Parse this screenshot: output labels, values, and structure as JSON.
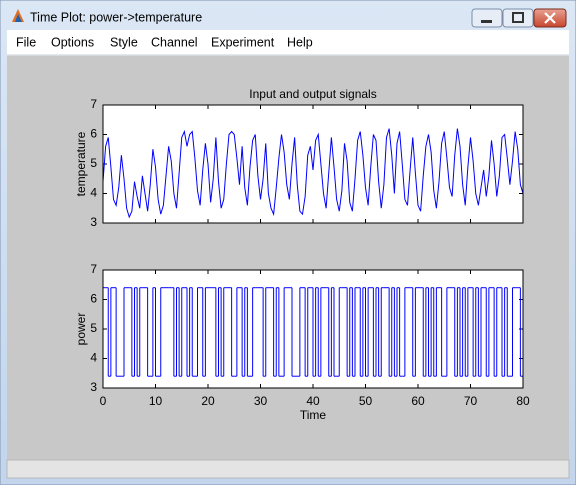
{
  "window": {
    "title": "Time Plot: power->temperature",
    "menu": [
      "File",
      "Options",
      "Style",
      "Channel",
      "Experiment",
      "Help"
    ]
  },
  "chart_data": [
    {
      "type": "line",
      "title": "Input and output signals",
      "ylabel": "temperature",
      "color": "#0000ff",
      "xlim": [
        0,
        80
      ],
      "ylim": [
        3,
        7
      ],
      "yticks": [
        3,
        4,
        5,
        6,
        7
      ],
      "x": [
        0,
        0.5,
        1,
        1.5,
        2,
        2.5,
        3,
        3.5,
        4,
        4.5,
        5,
        5.5,
        6,
        6.5,
        7,
        7.5,
        8,
        8.5,
        9,
        9.5,
        10,
        10.5,
        11,
        11.5,
        12,
        12.5,
        13,
        13.5,
        14,
        14.5,
        15,
        15.5,
        16,
        16.5,
        17,
        17.5,
        18,
        18.5,
        19,
        19.5,
        20,
        20.5,
        21,
        21.5,
        22,
        22.5,
        23,
        23.5,
        24,
        24.5,
        25,
        25.5,
        26,
        26.5,
        27,
        27.5,
        28,
        28.5,
        29,
        29.5,
        30,
        30.5,
        31,
        31.5,
        32,
        32.5,
        33,
        33.5,
        34,
        34.5,
        35,
        35.5,
        36,
        36.5,
        37,
        37.5,
        38,
        38.5,
        39,
        39.5,
        40,
        40.5,
        41,
        41.5,
        42,
        42.5,
        43,
        43.5,
        44,
        44.5,
        45,
        45.5,
        46,
        46.5,
        47,
        47.5,
        48,
        48.5,
        49,
        49.5,
        50,
        50.5,
        51,
        51.5,
        52,
        52.5,
        53,
        53.5,
        54,
        54.5,
        55,
        55.5,
        56,
        56.5,
        57,
        57.5,
        58,
        58.5,
        59,
        59.5,
        60,
        60.5,
        61,
        61.5,
        62,
        62.5,
        63,
        63.5,
        64,
        64.5,
        65,
        65.5,
        66,
        66.5,
        67,
        67.5,
        68,
        68.5,
        69,
        69.5,
        70,
        70.5,
        71,
        71.5,
        72,
        72.5,
        73,
        73.5,
        74,
        74.5,
        75,
        75.5,
        76,
        76.5,
        77,
        77.5,
        78,
        78.5,
        79,
        79.5,
        80
      ],
      "values": [
        4.4,
        5.6,
        5.9,
        4.9,
        3.8,
        3.6,
        4.2,
        5.3,
        4.5,
        3.5,
        3.2,
        3.4,
        4.4,
        3.9,
        3.5,
        4.6,
        4.0,
        3.4,
        4.3,
        5.5,
        4.9,
        3.8,
        3.3,
        3.6,
        4.6,
        5.6,
        5.1,
        4.0,
        3.5,
        4.7,
        5.9,
        6.1,
        5.6,
        6.0,
        6.1,
        5.2,
        4.1,
        3.6,
        4.8,
        5.7,
        5.0,
        3.7,
        4.5,
        5.9,
        4.4,
        3.5,
        3.8,
        5.0,
        6.0,
        6.1,
        6.0,
        5.2,
        4.3,
        5.6,
        4.2,
        3.6,
        4.9,
        5.8,
        6.0,
        4.6,
        3.8,
        4.5,
        5.7,
        4.0,
        3.5,
        3.3,
        4.2,
        5.2,
        6.0,
        5.4,
        4.3,
        3.8,
        5.0,
        5.9,
        4.3,
        3.4,
        3.3,
        3.9,
        5.3,
        5.6,
        4.8,
        5.8,
        6.0,
        5.0,
        4.0,
        3.5,
        4.7,
        5.9,
        4.9,
        3.8,
        3.4,
        4.1,
        5.7,
        5.1,
        3.7,
        3.4,
        4.5,
        5.8,
        6.1,
        5.3,
        4.2,
        3.6,
        4.9,
        6.0,
        5.8,
        4.4,
        3.5,
        4.3,
        5.9,
        6.2,
        5.3,
        4.0,
        5.7,
        6.1,
        5.0,
        3.8,
        3.6,
        4.8,
        5.9,
        4.7,
        3.6,
        3.4,
        4.6,
        5.6,
        6.0,
        5.4,
        4.1,
        3.5,
        4.4,
        5.7,
        6.1,
        5.2,
        4.2,
        3.9,
        5.3,
        6.2,
        5.6,
        4.3,
        3.6,
        4.9,
        5.9,
        5.1,
        4.0,
        3.6,
        4.2,
        4.8,
        3.9,
        4.6,
        5.8,
        5.0,
        3.9,
        4.6,
        5.9,
        6.0,
        5.2,
        4.3,
        5.1,
        6.1,
        5.5,
        4.3,
        4.0
      ]
    },
    {
      "type": "stairs",
      "ylabel": "power",
      "xlabel": "Time",
      "color": "#0000ff",
      "xlim": [
        0,
        80
      ],
      "xticks": [
        0,
        10,
        20,
        30,
        40,
        50,
        60,
        70,
        80
      ],
      "ylim": [
        3,
        7
      ],
      "yticks": [
        3,
        4,
        5,
        6,
        7
      ],
      "x": [
        0,
        0.5,
        1,
        1.5,
        2,
        2.5,
        3,
        3.5,
        4,
        4.5,
        5,
        5.5,
        6,
        6.5,
        7,
        7.5,
        8,
        8.5,
        9,
        9.5,
        10,
        10.5,
        11,
        11.5,
        12,
        12.5,
        13,
        13.5,
        14,
        14.5,
        15,
        15.5,
        16,
        16.5,
        17,
        17.5,
        18,
        18.5,
        19,
        19.5,
        20,
        20.5,
        21,
        21.5,
        22,
        22.5,
        23,
        23.5,
        24,
        24.5,
        25,
        25.5,
        26,
        26.5,
        27,
        27.5,
        28,
        28.5,
        29,
        29.5,
        30,
        30.5,
        31,
        31.5,
        32,
        32.5,
        33,
        33.5,
        34,
        34.5,
        35,
        35.5,
        36,
        36.5,
        37,
        37.5,
        38,
        38.5,
        39,
        39.5,
        40,
        40.5,
        41,
        41.5,
        42,
        42.5,
        43,
        43.5,
        44,
        44.5,
        45,
        45.5,
        46,
        46.5,
        47,
        47.5,
        48,
        48.5,
        49,
        49.5,
        50,
        50.5,
        51,
        51.5,
        52,
        52.5,
        53,
        53.5,
        54,
        54.5,
        55,
        55.5,
        56,
        56.5,
        57,
        57.5,
        58,
        58.5,
        59,
        59.5,
        60,
        60.5,
        61,
        61.5,
        62,
        62.5,
        63,
        63.5,
        64,
        64.5,
        65,
        65.5,
        66,
        66.5,
        67,
        67.5,
        68,
        68.5,
        69,
        69.5,
        70,
        70.5,
        71,
        71.5,
        72,
        72.5,
        73,
        73.5,
        74,
        74.5,
        75,
        75.5,
        76,
        76.5,
        77,
        77.5,
        78,
        78.5,
        79,
        79.5,
        80
      ],
      "values": [
        6.4,
        6.4,
        3.4,
        6.4,
        6.4,
        3.4,
        3.4,
        3.4,
        6.4,
        6.4,
        6.4,
        3.4,
        6.4,
        3.4,
        6.4,
        6.4,
        6.4,
        3.4,
        3.4,
        6.4,
        3.4,
        3.4,
        6.4,
        6.4,
        6.4,
        6.4,
        6.4,
        3.4,
        6.4,
        3.4,
        6.4,
        6.4,
        3.4,
        6.4,
        3.4,
        3.4,
        6.4,
        6.4,
        3.4,
        6.4,
        6.4,
        6.4,
        6.4,
        3.4,
        6.4,
        3.4,
        6.4,
        6.4,
        6.4,
        3.4,
        3.4,
        6.4,
        6.4,
        3.4,
        6.4,
        3.4,
        3.4,
        6.4,
        6.4,
        6.4,
        6.4,
        3.4,
        6.4,
        6.4,
        6.4,
        3.4,
        6.4,
        3.4,
        3.4,
        6.4,
        6.4,
        6.4,
        3.4,
        3.4,
        3.4,
        6.4,
        6.4,
        3.4,
        6.4,
        6.4,
        3.4,
        6.4,
        3.4,
        6.4,
        6.4,
        6.4,
        3.4,
        6.4,
        3.4,
        3.4,
        6.4,
        6.4,
        6.4,
        3.4,
        6.4,
        3.4,
        6.4,
        6.4,
        3.4,
        6.4,
        3.4,
        6.4,
        6.4,
        3.4,
        6.4,
        3.4,
        6.4,
        6.4,
        6.4,
        3.4,
        6.4,
        3.4,
        6.4,
        3.4,
        3.4,
        6.4,
        6.4,
        6.4,
        3.4,
        6.4,
        6.4,
        6.4,
        3.4,
        6.4,
        3.4,
        6.4,
        3.4,
        6.4,
        6.4,
        3.4,
        3.4,
        6.4,
        6.4,
        6.4,
        3.4,
        6.4,
        3.4,
        6.4,
        3.4,
        6.4,
        6.4,
        3.4,
        6.4,
        3.4,
        6.4,
        6.4,
        3.4,
        6.4,
        6.4,
        3.4,
        6.4,
        6.4,
        3.4,
        6.4,
        3.4,
        3.4,
        6.4,
        6.4,
        6.4,
        3.4,
        3.4
      ]
    }
  ]
}
